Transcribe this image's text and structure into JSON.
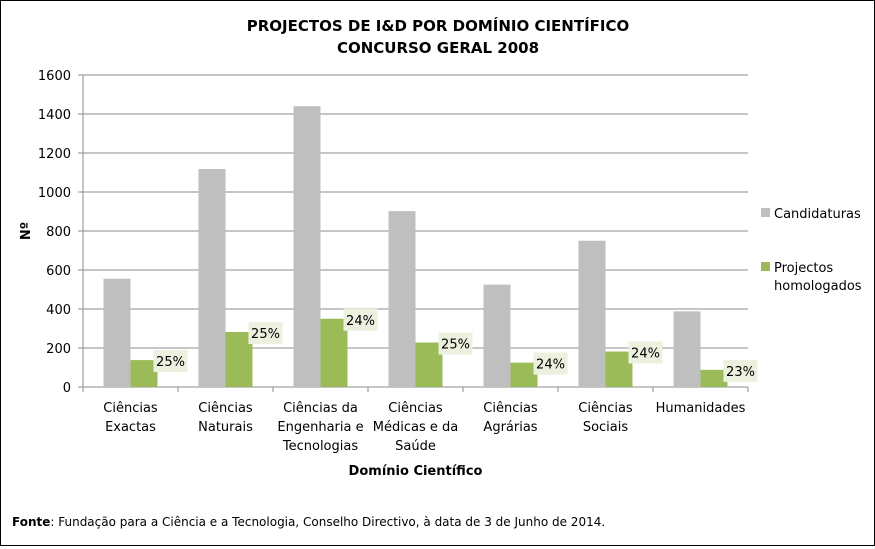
{
  "chart_data": {
    "type": "bar",
    "title": [
      "PROJECTOS DE I&D POR DOMÍNIO CIENTÍFICO",
      "CONCURSO GERAL 2008"
    ],
    "xlabel": "Domínio Científico",
    "ylabel": "Nº",
    "ylim": [
      0,
      1600
    ],
    "yticks": [
      0,
      200,
      400,
      600,
      800,
      1000,
      1200,
      1400,
      1600
    ],
    "grid": true,
    "legend_position": "right",
    "categories": [
      [
        "Ciências",
        "Exactas"
      ],
      [
        "Ciências",
        "Naturais"
      ],
      [
        "Ciências da",
        "Engenharia e",
        "Tecnologias"
      ],
      [
        "Ciências",
        "Médicas e da",
        "Saúde"
      ],
      [
        "Ciências",
        "Agrárias"
      ],
      [
        "Ciências",
        "Sociais"
      ],
      [
        "Humanidades"
      ]
    ],
    "series": [
      {
        "name": "Candidaturas",
        "color": "#bfbfbf",
        "values": [
          555,
          1118,
          1440,
          902,
          525,
          750,
          388
        ]
      },
      {
        "name": [
          "Projectos",
          "homologados"
        ],
        "color": "#9bbb59",
        "values": [
          138,
          282,
          350,
          228,
          125,
          182,
          88
        ]
      }
    ],
    "annotations": [
      "25%",
      "25%",
      "24%",
      "25%",
      "24%",
      "24%",
      "23%"
    ]
  },
  "footer": {
    "source_label": "Fonte",
    "source_text": ": Fundação para a Ciência e a Tecnologia, Conselho Directivo, à data de 3 de Junho de 2014."
  }
}
